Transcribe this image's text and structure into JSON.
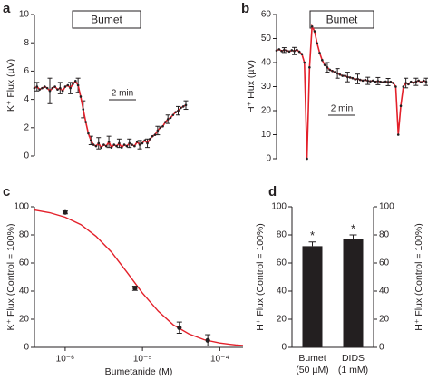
{
  "chart_data": [
    {
      "type": "line",
      "panel": "a",
      "ylabel": "K⁺ Flux (µV)",
      "annotation": "Bumet",
      "scale_bar": "2 min",
      "ylim": [
        0,
        10
      ],
      "yticks": [
        0,
        2,
        4,
        6,
        8,
        10
      ],
      "series": [
        {
          "color": "#e3202a",
          "marker_color": "#231f20",
          "values": [
            4.8,
            4.9,
            4.7,
            4.8,
            4.9,
            4.8,
            4.6,
            4.8,
            4.9,
            4.7,
            4.8,
            4.6,
            4.9,
            5.0,
            4.8,
            5.1,
            5.3,
            5.0,
            4.2,
            3.3,
            2.4,
            1.6,
            1.1,
            0.8,
            0.7,
            0.9,
            0.6,
            0.8,
            0.7,
            1.0,
            0.6,
            0.8,
            0.7,
            0.9,
            0.6,
            0.8,
            0.7,
            0.9,
            0.8,
            0.7,
            1.0,
            0.8,
            0.9,
            1.1,
            0.9,
            1.2,
            1.4,
            1.5,
            1.8,
            2.0,
            2.1,
            2.4,
            2.6,
            2.7,
            2.9,
            3.1,
            3.2,
            3.4,
            3.5,
            3.6
          ],
          "errors": [
            null,
            0.3,
            null,
            null,
            null,
            null,
            0.9,
            null,
            null,
            null,
            0.4,
            null,
            null,
            null,
            0.4,
            null,
            null,
            0.5,
            null,
            0.6,
            null,
            null,
            0.3,
            null,
            null,
            0.4,
            null,
            null,
            null,
            0.4,
            null,
            null,
            null,
            0.3,
            null,
            null,
            null,
            0.3,
            null,
            null,
            null,
            0.3,
            null,
            null,
            0.3,
            null,
            null,
            null,
            0.3,
            null,
            null,
            null,
            0.3,
            null,
            null,
            null,
            0.3,
            null,
            null,
            0.3
          ]
        }
      ]
    },
    {
      "type": "line",
      "panel": "b",
      "ylabel": "H⁺ Flux (µV)",
      "annotation": "Bumet",
      "scale_bar": "2 min",
      "ylim": [
        0,
        60
      ],
      "yticks": [
        0,
        10,
        20,
        30,
        40,
        50,
        60
      ],
      "series": [
        {
          "color": "#e3202a",
          "marker_color": "#231f20",
          "values": [
            45,
            45.5,
            44.8,
            45.2,
            45,
            44.6,
            45.1,
            44.8,
            45.3,
            44.5,
            43.5,
            40,
            0,
            38,
            55,
            53,
            48,
            44,
            41,
            39,
            38,
            37,
            36.5,
            36,
            35.5,
            35,
            34.5,
            34.5,
            34,
            33.8,
            33.5,
            33,
            33.2,
            32.8,
            32.5,
            32.8,
            32.4,
            32.2,
            32.5,
            32,
            32.3,
            32,
            31.8,
            32.1,
            31.9,
            32,
            31.5,
            30,
            10,
            22,
            30,
            31.5,
            31,
            32,
            31.6,
            32,
            32.5,
            31.8,
            32.5,
            32
          ],
          "errors": [
            null,
            null,
            null,
            1,
            null,
            null,
            null,
            1.5,
            null,
            null,
            null,
            null,
            null,
            null,
            null,
            null,
            null,
            null,
            null,
            null,
            2,
            null,
            null,
            null,
            2,
            null,
            null,
            null,
            2,
            null,
            null,
            null,
            2,
            null,
            null,
            null,
            1.5,
            null,
            null,
            null,
            1.5,
            null,
            null,
            null,
            1.5,
            null,
            null,
            null,
            null,
            null,
            null,
            2,
            null,
            null,
            null,
            1.5,
            null,
            null,
            null,
            1.5
          ]
        }
      ]
    },
    {
      "type": "scatter",
      "panel": "c",
      "ylabel": "K⁺ Flux (Control = 100%)",
      "xlabel": "Bumetanide (M)",
      "xscale": "log",
      "xlim": [
        4e-07,
        0.0002
      ],
      "xticks": [
        {
          "value": 1e-06,
          "label": "10⁻⁶"
        },
        {
          "value": 1e-05,
          "label": "10⁻⁵"
        },
        {
          "value": 0.0001,
          "label": "10⁻⁴"
        }
      ],
      "ylim": [
        0,
        100
      ],
      "yticks": [
        0,
        20,
        40,
        60,
        80,
        100
      ],
      "series": [
        {
          "color": "#231f20",
          "x": [
            1e-06,
            8e-06,
            3e-05,
            7e-05
          ],
          "values": [
            96,
            42,
            14,
            5
          ],
          "errors": [
            1,
            1.5,
            4,
            4
          ]
        }
      ],
      "fit": {
        "color": "#e3202a",
        "x": [
          4e-07,
          6.3e-07,
          1e-06,
          1.6e-06,
          2.5e-06,
          4e-06,
          6.3e-06,
          1e-05,
          1.6e-05,
          2.5e-05,
          4e-05,
          6.3e-05,
          0.0001,
          0.00016,
          0.0002
        ],
        "values": [
          97.7,
          95.8,
          92.6,
          87.3,
          79.1,
          67.6,
          53.4,
          38.6,
          25.7,
          16.0,
          9.5,
          5.4,
          3.1,
          1.7,
          1.3
        ]
      }
    },
    {
      "type": "bar",
      "panel": "d",
      "ylabel": "H⁺ Flux (Control = 100%)",
      "y2label": "H⁺ Flux (Control = 100%)",
      "categories": [
        "Bumet",
        "DIDS"
      ],
      "sublabels": [
        "(50 µM)",
        "(1 mM)"
      ],
      "values": [
        72,
        77
      ],
      "errors": [
        3,
        3
      ],
      "annotations": [
        "*",
        "*"
      ],
      "color": "#231f20",
      "ylim": [
        0,
        100
      ],
      "yticks": [
        0,
        20,
        40,
        60,
        80,
        100
      ],
      "y2lim": [
        0,
        100
      ],
      "y2ticks": [
        0,
        20,
        40,
        60,
        80,
        100
      ]
    }
  ]
}
